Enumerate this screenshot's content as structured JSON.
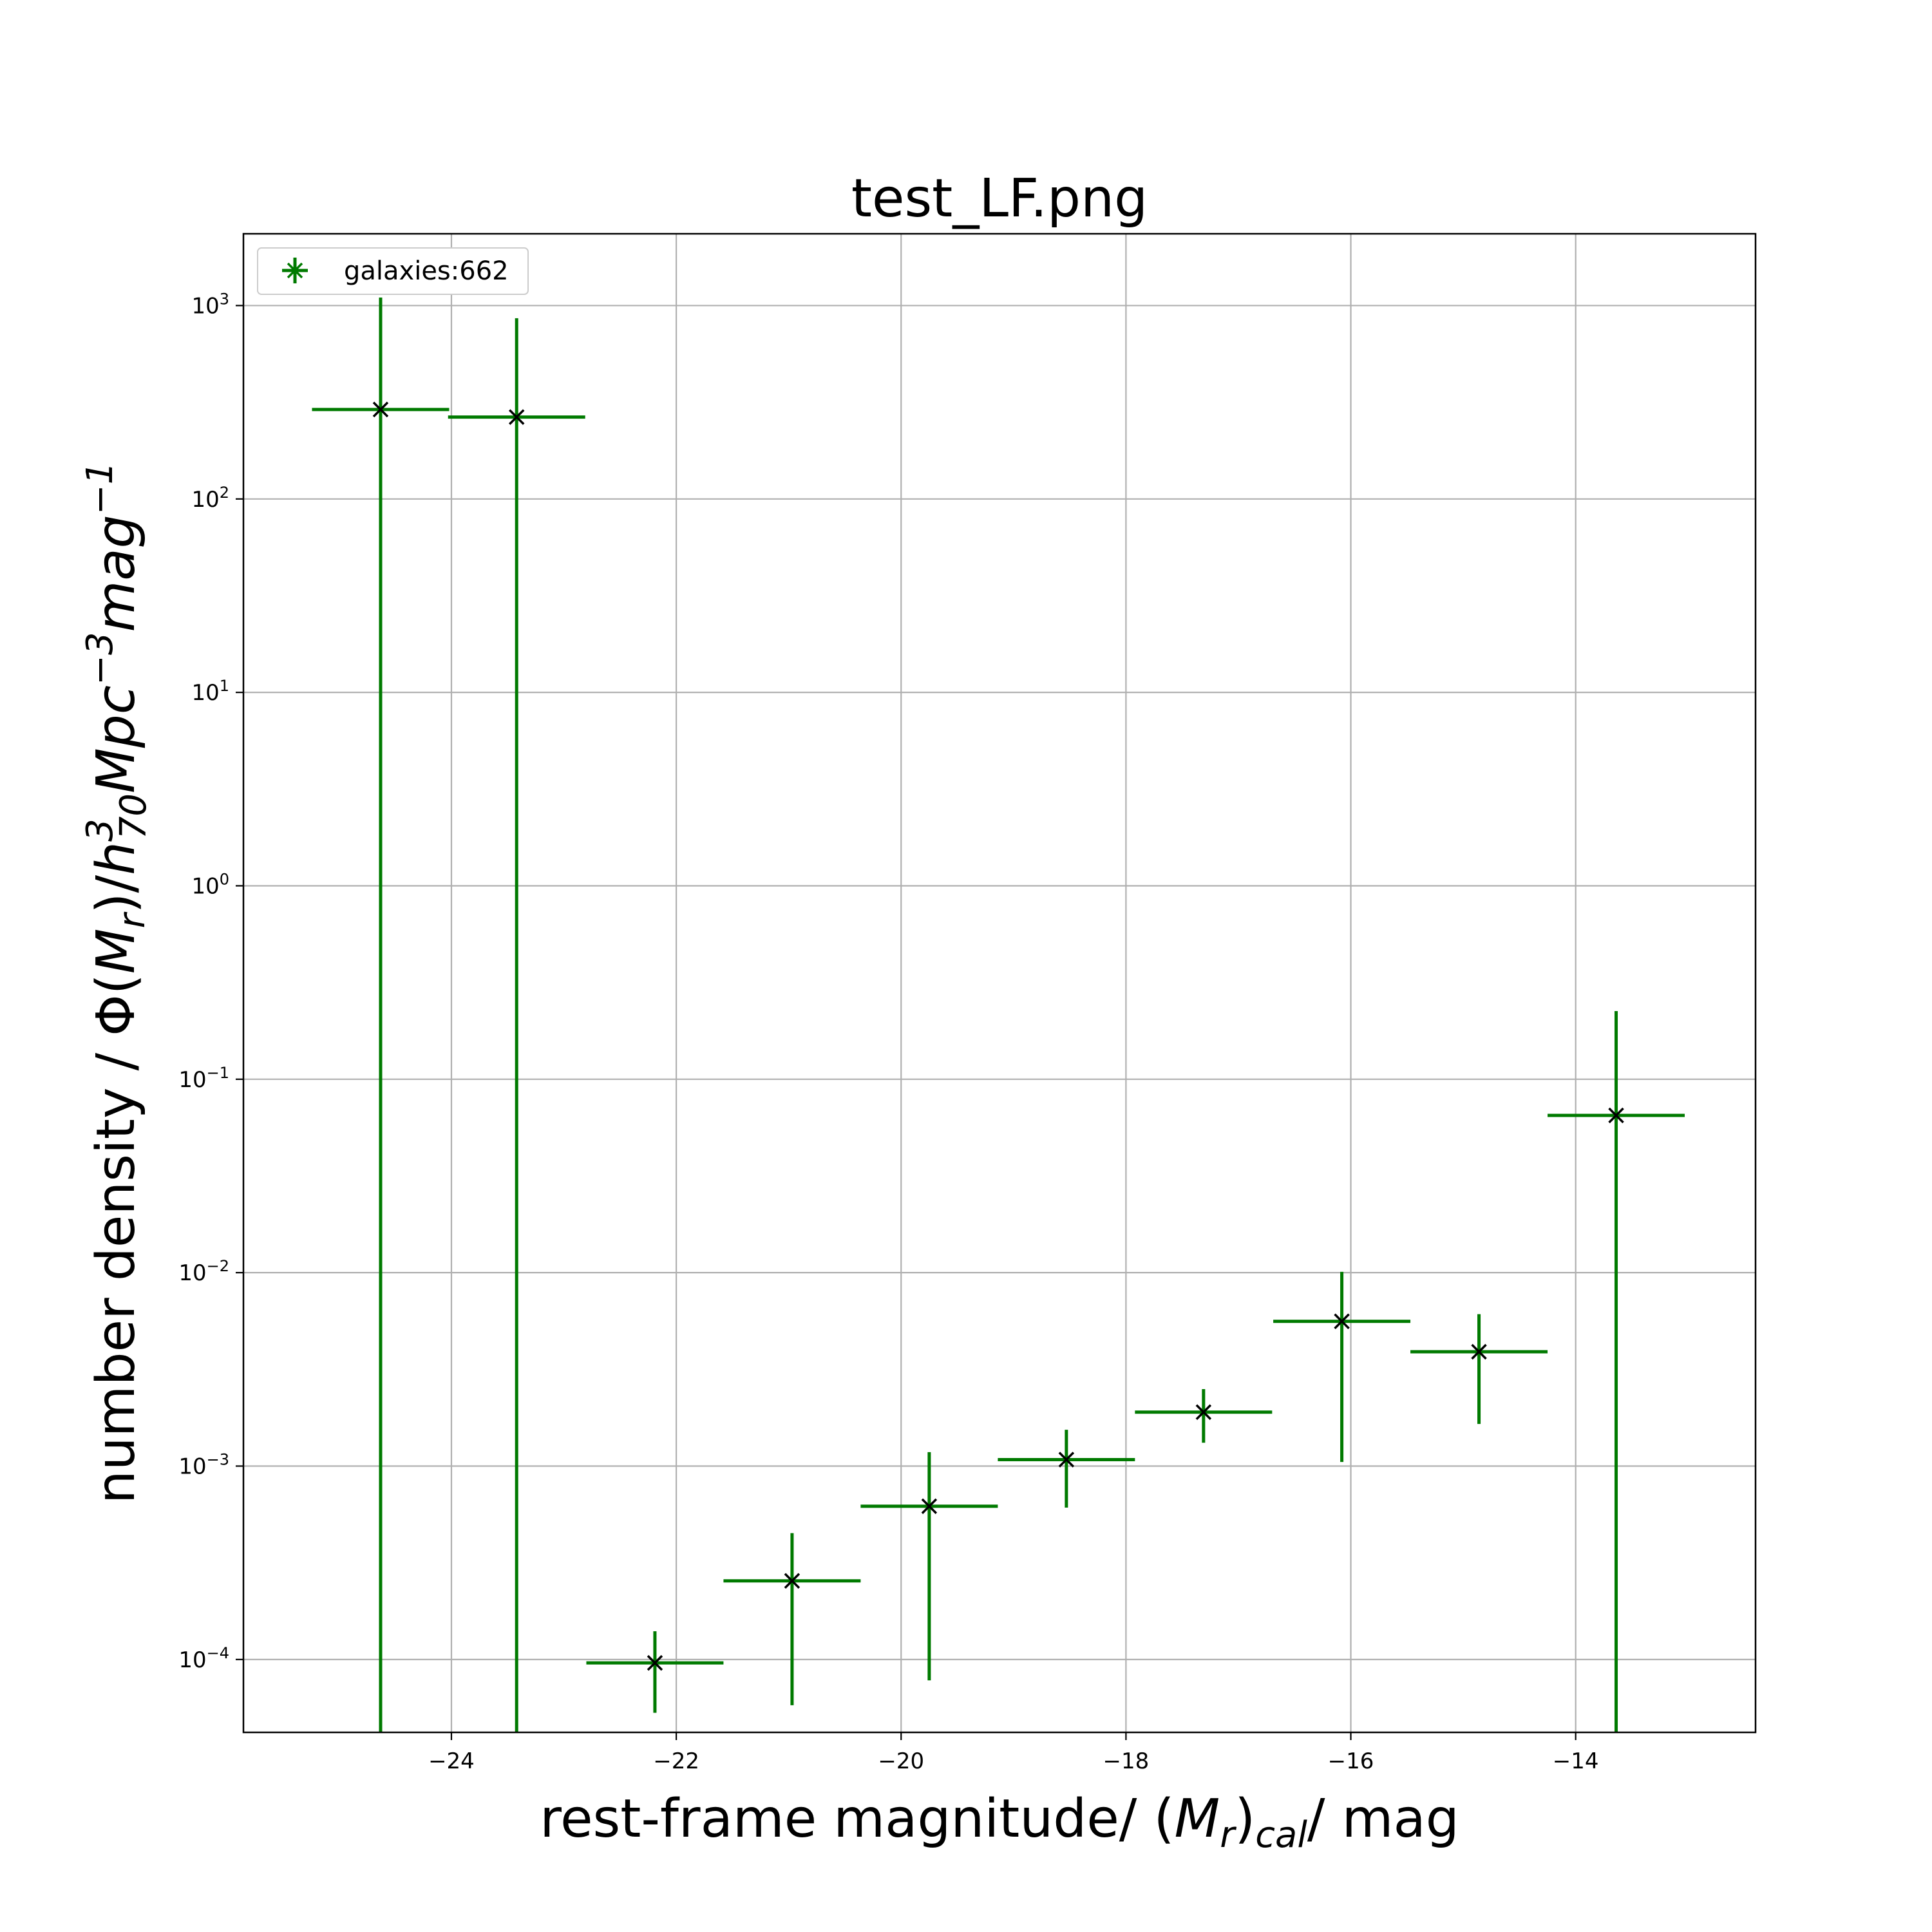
{
  "chart_data": {
    "type": "scatter",
    "title": "test_LF.png",
    "xlabel_parts": [
      "rest-frame magnitude/ (",
      "M",
      "r",
      ")",
      "cal",
      "/ mag"
    ],
    "ylabel_parts": [
      "number density / Φ(",
      "M",
      "r",
      ")/",
      "h",
      "3",
      "70",
      "Mpc",
      "−3",
      "mag",
      "−1"
    ],
    "xlim": [
      -25.85,
      -12.4
    ],
    "ylim": [
      4.2e-05,
      2350.0
    ],
    "yscale": "log",
    "grid": true,
    "legend_position": "top-left",
    "x_ticks": [
      -24,
      -22,
      -20,
      -18,
      -16,
      -14
    ],
    "x_tick_labels": [
      "−24",
      "−22",
      "−20",
      "−18",
      "−16",
      "−14"
    ],
    "y_ticks": [
      {
        "value": 1000.0,
        "base": "10",
        "exp": "3"
      },
      {
        "value": 100.0,
        "base": "10",
        "exp": "2"
      },
      {
        "value": 10.0,
        "base": "10",
        "exp": "1"
      },
      {
        "value": 1.0,
        "base": "10",
        "exp": "0"
      },
      {
        "value": 0.1,
        "base": "10",
        "exp": "−1"
      },
      {
        "value": 0.01,
        "base": "10",
        "exp": "−2"
      },
      {
        "value": 0.001,
        "base": "10",
        "exp": "−3"
      },
      {
        "value": 0.0001,
        "base": "10",
        "exp": "−4"
      }
    ],
    "series": [
      {
        "name": "galaxies:662",
        "color": "#007a00",
        "marker_color": "#000000",
        "points": [
          {
            "x": -24.63,
            "y": 290,
            "xerr": 0.61,
            "ylo": 4.2e-05,
            "yhi": 1100
          },
          {
            "x": -23.42,
            "y": 265,
            "xerr": 0.61,
            "ylo": 4.2e-05,
            "yhi": 860
          },
          {
            "x": -22.19,
            "y": 9.6e-05,
            "xerr": 0.61,
            "ylo": 5.3e-05,
            "yhi": 0.00014
          },
          {
            "x": -20.97,
            "y": 0.000255,
            "xerr": 0.61,
            "ylo": 5.8e-05,
            "yhi": 0.00045
          },
          {
            "x": -19.75,
            "y": 0.00062,
            "xerr": 0.61,
            "ylo": 7.8e-05,
            "yhi": 0.00118
          },
          {
            "x": -18.53,
            "y": 0.00108,
            "xerr": 0.61,
            "ylo": 0.00061,
            "yhi": 0.00154
          },
          {
            "x": -17.31,
            "y": 0.0019,
            "xerr": 0.61,
            "ylo": 0.00132,
            "yhi": 0.0025
          },
          {
            "x": -16.08,
            "y": 0.0056,
            "xerr": 0.61,
            "ylo": 0.00105,
            "yhi": 0.0101
          },
          {
            "x": -14.86,
            "y": 0.0039,
            "xerr": 0.61,
            "ylo": 0.00165,
            "yhi": 0.0061
          },
          {
            "x": -13.64,
            "y": 0.065,
            "xerr": 0.61,
            "ylo": 4.2e-05,
            "yhi": 0.225
          }
        ]
      }
    ]
  }
}
